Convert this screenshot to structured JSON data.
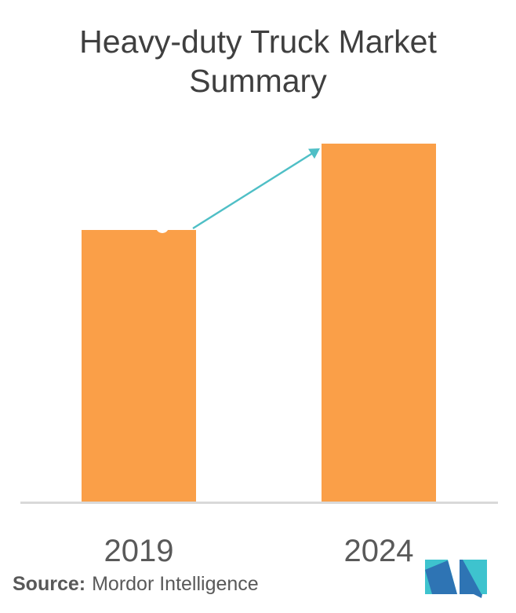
{
  "title": {
    "text": "Heavy-duty Truck Market Summary"
  },
  "chart_data": {
    "type": "bar",
    "title": "Heavy-duty Truck Market Summary",
    "categories": [
      "2019",
      "2024"
    ],
    "values": [
      76,
      100
    ],
    "values_note": "no value axis or data labels shown; values are relative bar heights (2024 indexed to 100)",
    "xlabel": "",
    "ylabel": "",
    "y_axis_visible": false,
    "grid": false,
    "legend": false,
    "annotations": [
      "teal growth arrow from top of 2019 bar to top of 2024 bar",
      "small white marker notch on top edge of 2019 bar"
    ]
  },
  "source": {
    "prefix": "Source:",
    "name": "Mordor Intelligence"
  },
  "logo": {
    "alt": "Mordor Intelligence logo",
    "icon": "mordor-intelligence-logo"
  },
  "colors": {
    "background": "#ffffff",
    "bar_orange": "#fa9f48",
    "arrow_teal": "#4fbfc6",
    "axis_line": "#d9d9d9",
    "title_text": "#3f3f3f",
    "label_text": "#595959",
    "logo_teal": "#3ec3ce",
    "logo_blue": "#2e74b4"
  }
}
